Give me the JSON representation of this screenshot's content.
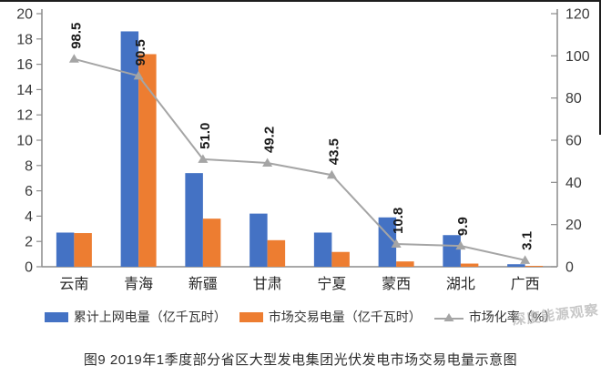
{
  "caption": "图9 2019年1季度部分省区大型发电集团光伏发电市场交易电量示意图",
  "watermark": "深度能源观察",
  "colors": {
    "bar_primary": "#4472C4",
    "bar_secondary": "#ED7D31",
    "line": "#A5A5A5",
    "axis": "#8C8C8C",
    "tick_label": "#3A3A3A",
    "category_label": "#262626",
    "data_label": "#1A1A1A"
  },
  "legend": [
    {
      "label": "累计上网电量（亿千瓦时）",
      "type": "bar",
      "color": "#4472C4"
    },
    {
      "label": "市场交易电量（亿千瓦时）",
      "type": "bar",
      "color": "#ED7D31"
    },
    {
      "label": "市场化率（%）",
      "type": "line",
      "color": "#A5A5A5"
    }
  ],
  "chart_data": {
    "type": "combo",
    "title": "",
    "categories": [
      "云南",
      "青海",
      "新疆",
      "甘肃",
      "宁夏",
      "蒙西",
      "湖北",
      "广西"
    ],
    "series": [
      {
        "name": "累计上网电量（亿千瓦时）",
        "type": "bar",
        "axis": "left",
        "color": "#4472C4",
        "values": [
          2.7,
          18.6,
          7.4,
          4.2,
          2.7,
          3.9,
          2.5,
          0.2
        ]
      },
      {
        "name": "市场交易电量（亿千瓦时）",
        "type": "bar",
        "axis": "left",
        "color": "#ED7D31",
        "values": [
          2.66,
          16.8,
          3.8,
          2.1,
          1.17,
          0.42,
          0.25,
          0.01
        ]
      },
      {
        "name": "市场化率（%）",
        "type": "line",
        "axis": "right",
        "color": "#A5A5A5",
        "marker": "triangle",
        "values": [
          98.5,
          90.5,
          51.0,
          49.2,
          43.5,
          10.8,
          9.9,
          3.1
        ],
        "data_labels": [
          "98.5",
          "90.5",
          "51.0",
          "49.2",
          "43.5",
          "10.8",
          "9.9",
          "3.1"
        ]
      }
    ],
    "left_axis": {
      "min": 0,
      "max": 20,
      "step": 2,
      "ticks": [
        0,
        2,
        4,
        6,
        8,
        10,
        12,
        14,
        16,
        18,
        20
      ]
    },
    "right_axis": {
      "min": 0,
      "max": 120,
      "step": 20,
      "ticks": [
        0,
        20,
        40,
        60,
        80,
        100,
        120
      ]
    },
    "grid": false,
    "legend_position": "bottom",
    "data_label_rotation": -90
  }
}
